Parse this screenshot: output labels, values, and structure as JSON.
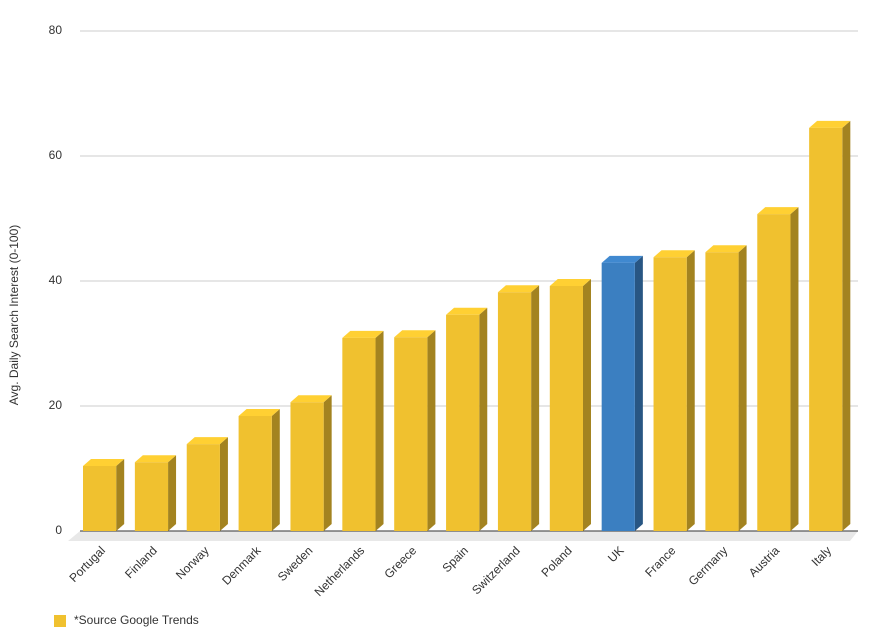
{
  "chart_data": {
    "type": "bar3d",
    "y_label": "Avg. Daily Search Interest (0-100)",
    "categories": [
      "Portugal",
      "Finland",
      "Norway",
      "Denmark",
      "Sweden",
      "Netherlands",
      "Greece",
      "Spain",
      "Switzerland",
      "Poland",
      "UK",
      "France",
      "Germany",
      "Austria",
      "Italy"
    ],
    "series": [
      {
        "name": "*Source Google Trends",
        "color": "#f0c12f",
        "values": [
          10.4,
          11,
          13.9,
          18.4,
          20.6,
          30.9,
          31,
          34.6,
          38.2,
          39.2,
          42.9,
          43.8,
          44.6,
          50.7,
          64.5
        ],
        "colors": [
          "#f0c12f",
          "#f0c12f",
          "#f0c12f",
          "#f0c12f",
          "#f0c12f",
          "#f0c12f",
          "#f0c12f",
          "#f0c12f",
          "#f0c12f",
          "#f0c12f",
          "#3b7fc1",
          "#f0c12f",
          "#f0c12f",
          "#f0c12f",
          "#f0c12f"
        ]
      }
    ],
    "ylim": [
      0,
      80
    ],
    "yticks": [
      0,
      20,
      40,
      60,
      80
    ],
    "grid": true,
    "legend": "bottom-left"
  }
}
